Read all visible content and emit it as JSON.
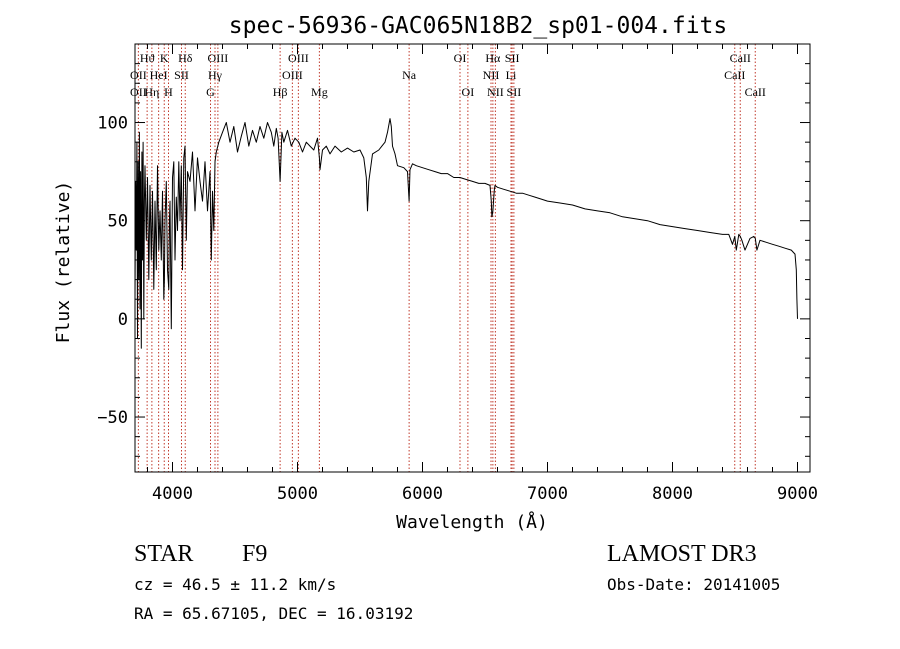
{
  "chart_data": {
    "type": "line",
    "title": "spec-56936-GAC065N18B2_sp01-004.fits",
    "xlabel": "Wavelength (Å)",
    "ylabel": "Flux (relative)",
    "xlim": [
      3700,
      9100
    ],
    "ylim": [
      -78,
      140
    ],
    "xticks": [
      {
        "value": 4000,
        "label": "4000"
      },
      {
        "value": 5000,
        "label": "5000"
      },
      {
        "value": 6000,
        "label": "6000"
      },
      {
        "value": 7000,
        "label": "7000"
      },
      {
        "value": 8000,
        "label": "8000"
      },
      {
        "value": 9000,
        "label": "9000"
      }
    ],
    "yticks": [
      {
        "value": -50,
        "label": "−50"
      },
      {
        "value": 0,
        "label": "0"
      },
      {
        "value": 50,
        "label": "50"
      },
      {
        "value": 100,
        "label": "100"
      }
    ],
    "series": [
      {
        "name": "spectrum",
        "x": [
          3700,
          3705,
          3710,
          3715,
          3720,
          3725,
          3730,
          3735,
          3740,
          3745,
          3750,
          3755,
          3760,
          3765,
          3770,
          3775,
          3780,
          3790,
          3800,
          3810,
          3820,
          3830,
          3840,
          3850,
          3860,
          3870,
          3880,
          3890,
          3900,
          3910,
          3920,
          3930,
          3935,
          3940,
          3950,
          3960,
          3970,
          3975,
          3980,
          3990,
          4000,
          4010,
          4020,
          4030,
          4040,
          4050,
          4060,
          4070,
          4080,
          4090,
          4100,
          4110,
          4120,
          4140,
          4160,
          4180,
          4200,
          4220,
          4240,
          4260,
          4280,
          4300,
          4310,
          4320,
          4330,
          4340,
          4350,
          4370,
          4400,
          4430,
          4460,
          4490,
          4520,
          4550,
          4580,
          4610,
          4640,
          4670,
          4700,
          4730,
          4760,
          4790,
          4810,
          4830,
          4845,
          4861,
          4875,
          4890,
          4920,
          4950,
          4980,
          5010,
          5040,
          5070,
          5100,
          5130,
          5160,
          5175,
          5180,
          5200,
          5230,
          5260,
          5300,
          5350,
          5400,
          5450,
          5500,
          5530,
          5550,
          5560,
          5570,
          5600,
          5650,
          5700,
          5720,
          5740,
          5750,
          5760,
          5780,
          5800,
          5850,
          5880,
          5893,
          5900,
          5920,
          5950,
          6000,
          6050,
          6100,
          6150,
          6200,
          6250,
          6300,
          6350,
          6400,
          6450,
          6500,
          6540,
          6550,
          6555,
          6563,
          6570,
          6575,
          6580,
          6600,
          6650,
          6700,
          6750,
          6800,
          6850,
          6900,
          6950,
          7000,
          7100,
          7200,
          7300,
          7400,
          7500,
          7600,
          7700,
          7800,
          7900,
          8000,
          8100,
          8200,
          8300,
          8400,
          8450,
          8480,
          8498,
          8510,
          8530,
          8542,
          8555,
          8580,
          8620,
          8650,
          8662,
          8675,
          8700,
          8750,
          8800,
          8850,
          8900,
          8950,
          8980,
          8990,
          8995,
          9000
        ],
        "values": [
          10,
          70,
          35,
          90,
          -10,
          80,
          20,
          95,
          5,
          75,
          -15,
          85,
          30,
          90,
          0,
          60,
          78,
          40,
          72,
          20,
          68,
          30,
          65,
          15,
          60,
          25,
          78,
          35,
          55,
          30,
          65,
          10,
          20,
          50,
          70,
          25,
          15,
          50,
          60,
          -5,
          72,
          80,
          30,
          62,
          45,
          80,
          50,
          78,
          25,
          82,
          88,
          40,
          75,
          70,
          85,
          55,
          82,
          70,
          60,
          80,
          55,
          75,
          30,
          65,
          45,
          80,
          85,
          90,
          95,
          100,
          90,
          98,
          85,
          93,
          100,
          88,
          96,
          90,
          98,
          92,
          100,
          95,
          88,
          97,
          92,
          70,
          95,
          90,
          96,
          88,
          92,
          90,
          85,
          90,
          88,
          86,
          92,
          82,
          76,
          86,
          88,
          84,
          88,
          85,
          87,
          85,
          86,
          82,
          72,
          55,
          70,
          84,
          86,
          90,
          95,
          102,
          98,
          88,
          84,
          78,
          77,
          75,
          60,
          76,
          79,
          78,
          77,
          76,
          75,
          74,
          74,
          72,
          72,
          71,
          70,
          69,
          69,
          68,
          60,
          52,
          55,
          62,
          66,
          68,
          67,
          66,
          65,
          64,
          64,
          63,
          62,
          61,
          60,
          59,
          58,
          56,
          55,
          54,
          52,
          51,
          50,
          48,
          47,
          46,
          45,
          44,
          43,
          43,
          38,
          42,
          35,
          43,
          42,
          40,
          35,
          41,
          42,
          41,
          35,
          40,
          39,
          38,
          37,
          36,
          35,
          33,
          25,
          10,
          0
        ]
      }
    ],
    "line_labels": [
      {
        "label": "Hϑ",
        "row": 1,
        "wave": 3797
      },
      {
        "label": "OII",
        "row": 2,
        "wave": 3727
      },
      {
        "label": "OII",
        "row": 3,
        "wave": 3727
      },
      {
        "label": "K",
        "row": 1,
        "wave": 3934
      },
      {
        "label": "HeI",
        "row": 2,
        "wave": 3889
      },
      {
        "label": "Hη",
        "row": 3,
        "wave": 3835
      },
      {
        "label": "SII",
        "row": 2,
        "wave": 4072
      },
      {
        "label": "H",
        "row": 3,
        "wave": 3968
      },
      {
        "label": "Hδ",
        "row": 1,
        "wave": 4102
      },
      {
        "label": "OIII",
        "row": 1,
        "wave": 4363
      },
      {
        "label": "Hγ",
        "row": 2,
        "wave": 4340
      },
      {
        "label": "G",
        "row": 3,
        "wave": 4304
      },
      {
        "label": "OIII",
        "row": 1,
        "wave": 5007
      },
      {
        "label": "OIII",
        "row": 2,
        "wave": 4959
      },
      {
        "label": "Hβ",
        "row": 3,
        "wave": 4861
      },
      {
        "label": "Mg",
        "row": 3,
        "wave": 5175
      },
      {
        "label": "Na",
        "row": 2,
        "wave": 5893
      },
      {
        "label": "OI",
        "row": 1,
        "wave": 6300
      },
      {
        "label": "OI",
        "row": 3,
        "wave": 6363
      },
      {
        "label": "Hα",
        "row": 1,
        "wave": 6563
      },
      {
        "label": "NII",
        "row": 2,
        "wave": 6548
      },
      {
        "label": "NII",
        "row": 3,
        "wave": 6583
      },
      {
        "label": "SII",
        "row": 1,
        "wave": 6717
      },
      {
        "label": "Li",
        "row": 2,
        "wave": 6708
      },
      {
        "label": "SII",
        "row": 3,
        "wave": 6731
      },
      {
        "label": "CaII",
        "row": 1,
        "wave": 8542
      },
      {
        "label": "CaII",
        "row": 2,
        "wave": 8498
      },
      {
        "label": "CaII",
        "row": 3,
        "wave": 8662
      }
    ],
    "line_markers": [
      3727,
      3797,
      3835,
      3889,
      3934,
      3968,
      4072,
      4102,
      4304,
      4340,
      4363,
      4861,
      4959,
      5007,
      5175,
      5893,
      6300,
      6363,
      6548,
      6563,
      6583,
      6708,
      6717,
      6731,
      8498,
      8542,
      8662
    ]
  },
  "info": {
    "class_label": "STAR",
    "subclass": "F9",
    "survey": "LAMOST DR3",
    "cz": "cz = 46.5 ± 11.2 km/s",
    "obs_date": "Obs-Date: 20141005",
    "coords": "RA =  65.67105, DEC =  16.03192"
  },
  "colors": {
    "line_marker": "#c0392b",
    "spectrum": "#000000",
    "axes": "#000000"
  }
}
